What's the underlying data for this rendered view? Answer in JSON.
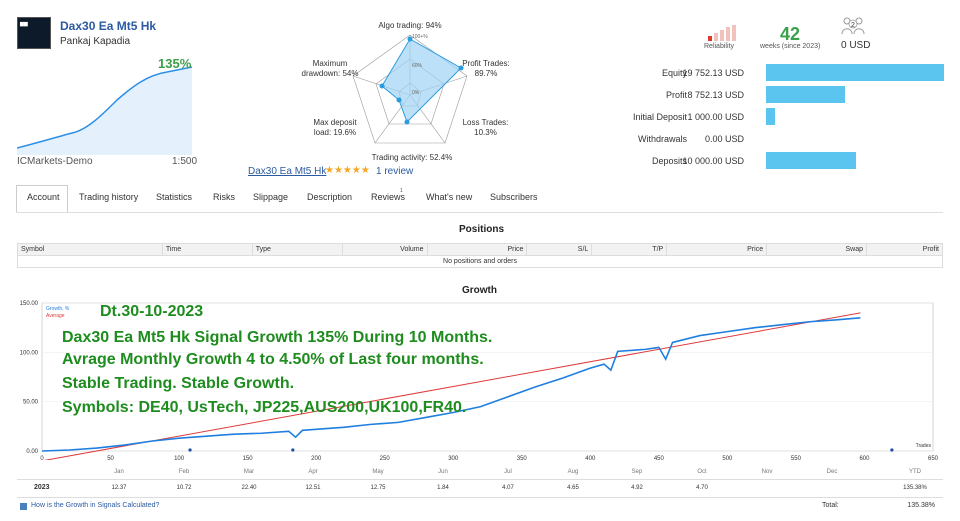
{
  "signal": {
    "title": "Dax30 Ea Mt5 Hk",
    "author": "Pankaj Kapadia",
    "growth": "135%",
    "account_type": "ICMarkets-Demo",
    "leverage": "1:500",
    "link": "Dax30 Ea Mt5 Hk",
    "reviews": "1 review",
    "stars": "★★★★★"
  },
  "radar": {
    "algo": "Algo trading: 94%",
    "profit_line1": "Profit Trades:",
    "profit_line2": "89.7%",
    "loss_line1": "Loss Trades:",
    "loss_line2": "10.3%",
    "activity": "Trading activity: 52.4%",
    "maxdep_line1": "Max deposit",
    "maxdep_line2": "load: 19.6%",
    "dd_line1": "Maximum",
    "dd_line2": "drawdown: 54%",
    "scale_100": "100+%",
    "scale_60": "60%",
    "scale_0": "0%"
  },
  "stats": {
    "reliability_label": "Reliability",
    "weeks_value": "42",
    "weeks_label": "weeks (since 2023)",
    "subscribers_value": "0 USD",
    "subscribers_badge": "2"
  },
  "balances": [
    {
      "label": "Equity",
      "value": "19 752.13 USD",
      "fraction": 1.0
    },
    {
      "label": "Profit",
      "value": "8 752.13 USD",
      "fraction": 0.443
    },
    {
      "label": "Initial Deposit",
      "value": "1 000.00 USD",
      "fraction": 0.05
    },
    {
      "label": "Withdrawals",
      "value": "0.00 USD",
      "fraction": 0.0
    },
    {
      "label": "Deposits",
      "value": "10 000.00 USD",
      "fraction": 0.506
    }
  ],
  "tabs": [
    {
      "label": "Account"
    },
    {
      "label": "Trading history"
    },
    {
      "label": "Statistics"
    },
    {
      "label": "Risks"
    },
    {
      "label": "Slippage"
    },
    {
      "label": "Description"
    },
    {
      "label": "Reviews"
    },
    {
      "label": "What's new"
    },
    {
      "label": "Subscribers"
    }
  ],
  "reviews_badge": "1",
  "positions": {
    "title": "Positions",
    "headers": [
      "Symbol",
      "Time",
      "Type",
      "Volume",
      "Price",
      "S/L",
      "T/P",
      "Price",
      "Swap",
      "Profit"
    ],
    "empty": "No positions and orders"
  },
  "growth": {
    "title": "Growth",
    "legend_growth": "Growth, %",
    "legend_average": "Average",
    "trades_label": "Trades",
    "y_ticks": [
      "150.00",
      "100.00",
      "50.00",
      "0.00"
    ],
    "x_ticks": [
      "0",
      "50",
      "100",
      "150",
      "200",
      "250",
      "300",
      "350",
      "400",
      "450",
      "500",
      "550",
      "600",
      "650"
    ],
    "overlay": [
      "Dt.30-10-2023",
      "Dax30 Ea Mt5 Hk Signal Growth 135% During 10 Months.",
      "Avrage Monthly Growth 4 to 4.50% of Last four months.",
      "Stable Trading. Stable Growth.",
      "Symbols: DE40, UsTech, JP225,AUS200,UK100,FR40."
    ],
    "months": [
      "Jan",
      "Feb",
      "Mar",
      "Apr",
      "May",
      "Jun",
      "Jul",
      "Aug",
      "Sep",
      "Oct",
      "Nov",
      "Dec",
      "YTD"
    ],
    "year": "2023",
    "monthly": [
      "12.37",
      "10.72",
      "22.40",
      "12.51",
      "12.75",
      "1.84",
      "4.07",
      "4.65",
      "4.92",
      "4.70",
      "",
      "",
      "135.38%"
    ],
    "help": "How is the Growth in Signals Calculated?",
    "total_label": "Total:",
    "total_value": "135.38%",
    "colors": {
      "growth": "#1e7fe0",
      "average": "#e03a3a",
      "overlay": "#1e8c1e"
    }
  },
  "chart_data": {
    "type": "line",
    "title": "Growth",
    "xlabel": "Trades",
    "ylabel": "",
    "xlim": [
      0,
      650
    ],
    "ylim": [
      0,
      150
    ],
    "series": [
      {
        "name": "Growth, %",
        "x": [
          0,
          20,
          40,
          60,
          80,
          100,
          120,
          140,
          160,
          180,
          185,
          190,
          200,
          220,
          240,
          260,
          280,
          300,
          320,
          340,
          360,
          380,
          400,
          410,
          415,
          420,
          440,
          450,
          455,
          460,
          480,
          500,
          520,
          540,
          560,
          580,
          597
        ],
        "y": [
          0,
          1,
          3,
          6,
          10,
          13,
          15,
          17,
          18,
          20,
          14,
          21,
          22,
          24,
          27,
          29,
          34,
          39,
          45,
          55,
          65,
          74,
          84,
          88,
          82,
          101,
          103,
          105,
          93,
          110,
          117,
          121,
          125,
          128,
          131,
          133,
          135
        ]
      },
      {
        "name": "Average",
        "x": [
          0,
          597
        ],
        "y": [
          -10,
          140
        ]
      }
    ]
  }
}
